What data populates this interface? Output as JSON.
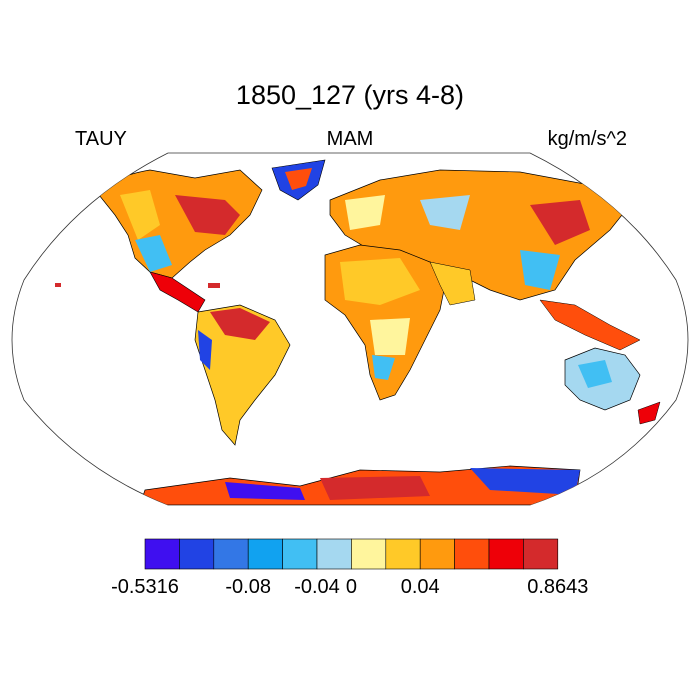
{
  "title": "1850_127 (yrs 4-8)",
  "left_label": "TAUY",
  "center_label": "MAM",
  "right_label": "kg/m/s^2",
  "colors": {
    "ocean": "#ffffff",
    "coast": "#000000"
  },
  "colorbar": {
    "colors": [
      "#3f0ff0",
      "#2143e4",
      "#3377e6",
      "#11a2f0",
      "#41bff3",
      "#a5d8f0",
      "#fff59d",
      "#ffc928",
      "#ff9a0e",
      "#ff4e0c",
      "#ee0008",
      "#d42a2c"
    ],
    "tick_labels": [
      "-0.5316",
      "-0.08",
      "-0.04",
      "0",
      "0.04",
      "0.8643"
    ],
    "tick_bounds": [
      0,
      3,
      5,
      6,
      8,
      12
    ]
  }
}
